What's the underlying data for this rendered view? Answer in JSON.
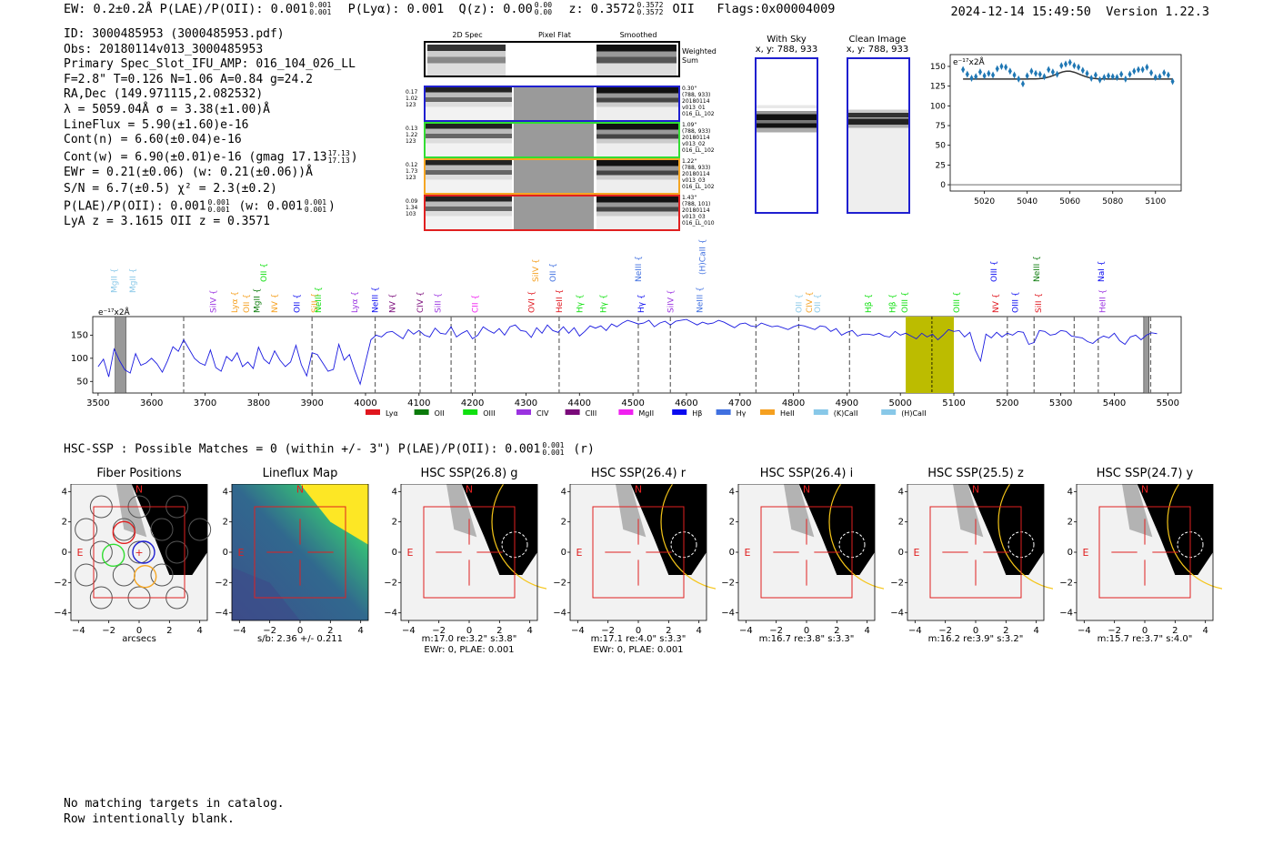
{
  "header": {
    "left": "EW: 0.2±0.2Å  P(LAE)/P(OII): 0.001",
    "plae_hi": "0.001",
    "plae_lo": "0.001",
    "plya": "P(Lyα): 0.001",
    "qz": "Q(z): 0.00",
    "qz_hi": "0.00",
    "qz_lo": "0.00",
    "z": "z: 0.3572",
    "z_hi": "0.3572",
    "z_lo": "0.3572",
    "z_tail": "OII",
    "flags": "Flags:0x00004009",
    "timestamp": "2024-12-14 15:49:50",
    "version": "Version 1.22.3"
  },
  "info": {
    "lines": [
      "ID: 3000485953 (3000485953.pdf)",
      "Obs: 20180114v013_3000485953",
      "Primary Spec_Slot_IFU_AMP: 016_104_026_LL",
      "F=2.8\"  T=0.126  N=1.06  A=0.84  g=24.2",
      "RA,Dec (149.971115,2.082532)",
      "λ = 5059.04Å  σ = 3.38(±1.00)Å",
      "LineFlux = 5.90(±1.60)e-16",
      "Cont(n) = 6.60(±0.04)e-16"
    ],
    "contw": "Cont(w) = 6.90(±0.01)e-16 (gmag 17.13",
    "contw_hi": "17.13",
    "contw_lo": "17.13",
    "contw_tail": ")",
    "ewr": "EWr = 0.21(±0.06) (w: 0.21(±0.06))Å",
    "sn": "S/N = 6.7(±0.5)  χ² = 2.3(±0.2)",
    "plae": "P(LAE)/P(OII): 0.001",
    "plae_hi": "0.001",
    "plae_lo": "0.001",
    "plae_w": "(w: 0.001",
    "plae_w_hi": "0.001",
    "plae_w_lo": "0.001",
    "plae_w_tail": ")",
    "lya": "LyA z = 3.1615   OII z = 0.3571"
  },
  "stamps": {
    "col_headers": [
      "2D Spec",
      "Pixel Flat",
      "Smoothed"
    ],
    "weighted_label": "Weighted Sum",
    "rows": [
      {
        "left": [
          "0.17",
          "1.02",
          "123"
        ],
        "right": [
          "0.30\"",
          "(788, 933)",
          "20180114",
          "v013_01",
          "016_LL_102"
        ],
        "color": "#1f1fd0"
      },
      {
        "left": [
          "0.13",
          "1.22",
          "123"
        ],
        "right": [
          "1.09\"",
          "(788, 933)",
          "20180114",
          "v013_02",
          "016_LL_102"
        ],
        "color": "#33dd33"
      },
      {
        "left": [
          "0.12",
          "1.73",
          "123"
        ],
        "right": [
          "1.22\"",
          "(788, 933)",
          "20180114",
          "v013_03",
          "016_LL_102"
        ],
        "color": "#f5a623"
      },
      {
        "left": [
          "0.09",
          "1.34",
          "103"
        ],
        "right": [
          "1.43\"",
          "(788, 101)",
          "20180114",
          "v013_03",
          "016_LL_010"
        ],
        "color": "#e02020"
      }
    ]
  },
  "sky_panels": {
    "with_sky": "With Sky",
    "with_sky_xy": "x, y: 788, 933",
    "clean": "Clean Image",
    "clean_xy": "x, y: 788, 933"
  },
  "chart_data": [
    {
      "type": "scatter",
      "id": "line_fit",
      "ylabel": "e⁻¹⁷x2Å",
      "xlim": [
        5004,
        5112
      ],
      "ylim": [
        -8,
        165
      ],
      "yticks": [
        0,
        25,
        50,
        75,
        100,
        125,
        150
      ],
      "xticks": [
        5020,
        5040,
        5060,
        5080,
        5100
      ],
      "points_x": [
        5010,
        5012,
        5014,
        5016,
        5018,
        5020,
        5022,
        5024,
        5026,
        5028,
        5030,
        5032,
        5034,
        5036,
        5038,
        5040,
        5042,
        5044,
        5046,
        5048,
        5050,
        5052,
        5054,
        5056,
        5058,
        5060,
        5062,
        5064,
        5066,
        5068,
        5070,
        5072,
        5074,
        5076,
        5078,
        5080,
        5082,
        5084,
        5086,
        5088,
        5090,
        5092,
        5094,
        5096,
        5098,
        5100,
        5102,
        5104,
        5106,
        5108
      ],
      "points_y": [
        146,
        140,
        135,
        137,
        143,
        138,
        141,
        139,
        147,
        150,
        149,
        144,
        139,
        134,
        128,
        138,
        144,
        141,
        140,
        137,
        146,
        143,
        140,
        151,
        153,
        155,
        151,
        149,
        145,
        141,
        135,
        139,
        133,
        136,
        138,
        137,
        136,
        140,
        134,
        140,
        144,
        146,
        146,
        149,
        142,
        136,
        137,
        142,
        139,
        131
      ],
      "fit": {
        "continuum": 134,
        "amplitude": 10,
        "center": 5059.04,
        "sigma": 3.38
      }
    },
    {
      "type": "line",
      "id": "full_spectrum",
      "ylabel": "e⁻¹⁷x2Å",
      "xlim": [
        3490,
        5525
      ],
      "ylim": [
        25,
        190
      ],
      "yticks": [
        50,
        100,
        150
      ],
      "xticks": [
        3500,
        3600,
        3700,
        3800,
        3900,
        4000,
        4100,
        4200,
        4300,
        4400,
        4500,
        4600,
        4700,
        4800,
        4900,
        5000,
        5100,
        5200,
        5300,
        5400,
        5500
      ],
      "highlight": [
        5010,
        5100
      ],
      "highlight_line": 5059.04,
      "hatched": [
        [
          3532,
          3552
        ],
        [
          5455,
          5465
        ]
      ],
      "dashed_lines": [
        3660,
        3900,
        4018,
        4102,
        4160,
        4205,
        4362,
        4510,
        4570,
        4730,
        4810,
        4905,
        5200,
        5250,
        5325,
        5370,
        5468
      ],
      "spectrum_x": [
        3500,
        3510,
        3520,
        3530,
        3540,
        3550,
        3560,
        3570,
        3580,
        3590,
        3600,
        3610,
        3620,
        3630,
        3640,
        3650,
        3660,
        3670,
        3680,
        3690,
        3700,
        3710,
        3720,
        3730,
        3740,
        3750,
        3760,
        3770,
        3780,
        3790,
        3800,
        3810,
        3820,
        3830,
        3840,
        3850,
        3860,
        3870,
        3880,
        3890,
        3900,
        3910,
        3920,
        3930,
        3940,
        3950,
        3960,
        3970,
        3980,
        3990,
        4000,
        4010,
        4020,
        4030,
        4040,
        4050,
        4060,
        4070,
        4080,
        4090,
        4100,
        4110,
        4120,
        4130,
        4140,
        4150,
        4160,
        4170,
        4180,
        4190,
        4200,
        4210,
        4220,
        4230,
        4240,
        4250,
        4260,
        4270,
        4280,
        4290,
        4300,
        4310,
        4320,
        4330,
        4340,
        4350,
        4360,
        4370,
        4380,
        4390,
        4400,
        4410,
        4420,
        4430,
        4440,
        4450,
        4460,
        4470,
        4480,
        4490,
        4500,
        4510,
        4520,
        4530,
        4540,
        4550,
        4560,
        4570,
        4580,
        4590,
        4600,
        4610,
        4620,
        4630,
        4640,
        4650,
        4660,
        4670,
        4680,
        4690,
        4700,
        4710,
        4720,
        4730,
        4740,
        4750,
        4760,
        4770,
        4780,
        4790,
        4800,
        4810,
        4820,
        4830,
        4840,
        4850,
        4860,
        4870,
        4880,
        4890,
        4900,
        4910,
        4920,
        4930,
        4940,
        4950,
        4960,
        4970,
        4980,
        4990,
        5000,
        5010,
        5020,
        5030,
        5040,
        5050,
        5060,
        5070,
        5080,
        5090,
        5100,
        5110,
        5120,
        5130,
        5140,
        5150,
        5160,
        5170,
        5180,
        5190,
        5200,
        5210,
        5220,
        5230,
        5240,
        5250,
        5260,
        5270,
        5280,
        5290,
        5300,
        5310,
        5320,
        5330,
        5340,
        5350,
        5360,
        5370,
        5380,
        5390,
        5400,
        5410,
        5420,
        5430,
        5440,
        5450,
        5460,
        5470,
        5480,
        5490,
        5500,
        5510,
        5520
      ],
      "spectrum_y": [
        82,
        98,
        60,
        120,
        95,
        75,
        68,
        110,
        85,
        90,
        100,
        88,
        70,
        95,
        125,
        115,
        140,
        120,
        100,
        90,
        85,
        118,
        80,
        72,
        104,
        94,
        112,
        82,
        92,
        78,
        124,
        98,
        88,
        116,
        96,
        82,
        92,
        128,
        86,
        62,
        112,
        108,
        90,
        72,
        76,
        130,
        96,
        108,
        74,
        44,
        92,
        140,
        150,
        146,
        156,
        158,
        150,
        142,
        162,
        152,
        160,
        150,
        146,
        165,
        154,
        152,
        168,
        146,
        154,
        160,
        142,
        150,
        168,
        160,
        154,
        164,
        150,
        168,
        172,
        160,
        158,
        145,
        166,
        154,
        172,
        160,
        156,
        168,
        154,
        166,
        148,
        158,
        170,
        165,
        170,
        160,
        174,
        168,
        176,
        182,
        178,
        174,
        176,
        182,
        168,
        176,
        180,
        172,
        180,
        182,
        184,
        178,
        172,
        178,
        174,
        176,
        182,
        178,
        172,
        166,
        174,
        176,
        170,
        168,
        176,
        172,
        168,
        170,
        166,
        162,
        168,
        172,
        170,
        166,
        162,
        170,
        168,
        158,
        164,
        150,
        156,
        160,
        148,
        152,
        152,
        150,
        154,
        148,
        146,
        158,
        150,
        154,
        148,
        142,
        154,
        146,
        152,
        140,
        150,
        162,
        158,
        160,
        146,
        156,
        118,
        94,
        152,
        144,
        156,
        146,
        154,
        150,
        158,
        156,
        130,
        134,
        160,
        158,
        150,
        152,
        160,
        158,
        148,
        146,
        144,
        136,
        132,
        142,
        148,
        144,
        154,
        138,
        130,
        146,
        150,
        140,
        150,
        155,
        153
      ]
    },
    {
      "type": "legend",
      "id": "line_legend",
      "entries": [
        {
          "label": "Lyα",
          "color": "#e0161e"
        },
        {
          "label": "OII",
          "color": "#0a7a0a"
        },
        {
          "label": "OIII",
          "color": "#10e010"
        },
        {
          "label": "CIV",
          "color": "#9a32e0"
        },
        {
          "label": "CIII",
          "color": "#7a0a7a"
        },
        {
          "label": "MgII",
          "color": "#f020f0"
        },
        {
          "label": "Hβ",
          "color": "#0a0af0"
        },
        {
          "label": "Hγ",
          "color": "#4070e0"
        },
        {
          "label": "HeII",
          "color": "#f5a020"
        },
        {
          "label": "(K)CaII",
          "color": "#88c8e8"
        },
        {
          "label": "(H)CaII",
          "color": "#88c8e8"
        }
      ]
    }
  ],
  "line_labels": [
    {
      "text": "MgII",
      "wave": 3530,
      "row": 2,
      "color": "#88c8e8"
    },
    {
      "text": "MgII",
      "wave": 3565,
      "row": 2,
      "color": "#88c8e8"
    },
    {
      "text": "SiIV",
      "wave": 3715,
      "row": 3,
      "color": "#9a32e0"
    },
    {
      "text": "Lyα",
      "wave": 3755,
      "row": 3,
      "color": "#f5a020"
    },
    {
      "text": "OII",
      "wave": 3777,
      "row": 3,
      "color": "#f5a020"
    },
    {
      "text": "MgII",
      "wave": 3797,
      "row": 3,
      "color": "#0a7a0a"
    },
    {
      "text": "OII",
      "wave": 3810,
      "row": 1,
      "color": "#10e010"
    },
    {
      "text": "NV",
      "wave": 3830,
      "row": 3,
      "color": "#f5a020"
    },
    {
      "text": "OII",
      "wave": 3872,
      "row": 3,
      "color": "#0a0af0"
    },
    {
      "text": "SiII",
      "wave": 3905,
      "row": 3,
      "color": "#f5a020"
    },
    {
      "text": "NeIII",
      "wave": 3912,
      "row": 3,
      "color": "#10e010"
    },
    {
      "text": "Lyα",
      "wave": 3980,
      "row": 3,
      "color": "#9a32e0"
    },
    {
      "text": "NeIII",
      "wave": 4018,
      "row": 3,
      "color": "#0a0af0"
    },
    {
      "text": "NV",
      "wave": 4050,
      "row": 3,
      "color": "#7a0a7a"
    },
    {
      "text": "CIV",
      "wave": 4102,
      "row": 3,
      "color": "#7a0a7a"
    },
    {
      "text": "SiII",
      "wave": 4135,
      "row": 3,
      "color": "#9a32e0"
    },
    {
      "text": "CII",
      "wave": 4205,
      "row": 3,
      "color": "#f020f0"
    },
    {
      "text": "OVI",
      "wave": 4310,
      "row": 3,
      "color": "#e0161e"
    },
    {
      "text": "SiIV",
      "wave": 4318,
      "row": 1,
      "color": "#f5a020"
    },
    {
      "text": "OII",
      "wave": 4350,
      "row": 1,
      "color": "#4070e0"
    },
    {
      "text": "HeII",
      "wave": 4362,
      "row": 3,
      "color": "#e0161e"
    },
    {
      "text": "Hγ",
      "wave": 4400,
      "row": 3,
      "color": "#10e010"
    },
    {
      "text": "Hγ",
      "wave": 4445,
      "row": 3,
      "color": "#10e010"
    },
    {
      "text": "NeIII",
      "wave": 4510,
      "row": 1,
      "color": "#4070e0"
    },
    {
      "text": "Hγ",
      "wave": 4515,
      "row": 3,
      "color": "#0a0af0"
    },
    {
      "text": "SiIV",
      "wave": 4570,
      "row": 3,
      "color": "#9a32e0"
    },
    {
      "text": "NeIII",
      "wave": 4625,
      "row": 3,
      "color": "#4070e0"
    },
    {
      "text": "(H)CaII",
      "wave": 4630,
      "row": 0,
      "color": "#4070e0"
    },
    {
      "text": "OII",
      "wave": 4810,
      "row": 3,
      "color": "#88c8e8"
    },
    {
      "text": "CIV",
      "wave": 4830,
      "row": 3,
      "color": "#f5a020"
    },
    {
      "text": "OII",
      "wave": 4845,
      "row": 3,
      "color": "#88c8e8"
    },
    {
      "text": "Hβ",
      "wave": 4940,
      "row": 3,
      "color": "#10e010"
    },
    {
      "text": "Hβ",
      "wave": 4985,
      "row": 3,
      "color": "#10e010"
    },
    {
      "text": "OIII",
      "wave": 5008,
      "row": 3,
      "color": "#10e010"
    },
    {
      "text": "OIII",
      "wave": 5105,
      "row": 3,
      "color": "#10e010"
    },
    {
      "text": "OIII",
      "wave": 5175,
      "row": 1,
      "color": "#0a0af0"
    },
    {
      "text": "NV",
      "wave": 5178,
      "row": 3,
      "color": "#e0161e"
    },
    {
      "text": "OIII",
      "wave": 5215,
      "row": 3,
      "color": "#0a0af0"
    },
    {
      "text": "NeIII",
      "wave": 5255,
      "row": 1,
      "color": "#0a7a0a"
    },
    {
      "text": "SiII",
      "wave": 5258,
      "row": 3,
      "color": "#e0161e"
    },
    {
      "text": "NaI",
      "wave": 5375,
      "row": 1,
      "color": "#0a0af0"
    },
    {
      "text": "HeII",
      "wave": 5378,
      "row": 3,
      "color": "#9a32e0"
    }
  ],
  "hsc_title": "HSC-SSP : Possible Matches = 0 (within +/- 3\")  P(LAE)/P(OII): 0.001",
  "hsc_plae_hi": "0.001",
  "hsc_plae_lo": "0.001",
  "hsc_tail": "(r)",
  "cutouts": [
    {
      "title": "Fiber Positions",
      "sub1": "arcsecs",
      "sub2": "",
      "kind": "fiber"
    },
    {
      "title": "Lineflux Map",
      "sub1": "s/b: 2.36 +/- 0.211",
      "sub2": "",
      "kind": "flux"
    },
    {
      "title": "HSC SSP(26.8) g",
      "sub1": "m:17.0  re:3.2\"  s:3.8\"",
      "sub2": "",
      "kind": "hsc"
    },
    {
      "title": "HSC SSP(26.4) r",
      "sub1": "m:17.1  re:4.0\"  s:3.3\"",
      "sub2": "EWr: 0, PLAE: 0.001",
      "kind": "hsc"
    },
    {
      "title": "HSC SSP(26.4) i",
      "sub1": "m:16.7  re:3.8\"  s:3.3\"",
      "sub2": "",
      "kind": "hsc"
    },
    {
      "title": "HSC SSP(25.5) z",
      "sub1": "m:16.2  re:3.9\"  s:3.2\"",
      "sub2": "",
      "kind": "hsc"
    },
    {
      "title": "HSC SSP(24.7) y",
      "sub1": "m:15.7  re:3.7\"  s:4.0\"",
      "sub2": "",
      "kind": "hsc"
    }
  ],
  "cutout_axes": {
    "ticks": [
      "−4",
      "−2",
      "0",
      "2",
      "4"
    ],
    "N": "N",
    "E": "E"
  },
  "sub3_row": {
    "sub2_g": "EWr: 0, PLAE: 0.001"
  },
  "footer": [
    "No matching targets in catalog.",
    "Row intentionally blank."
  ]
}
